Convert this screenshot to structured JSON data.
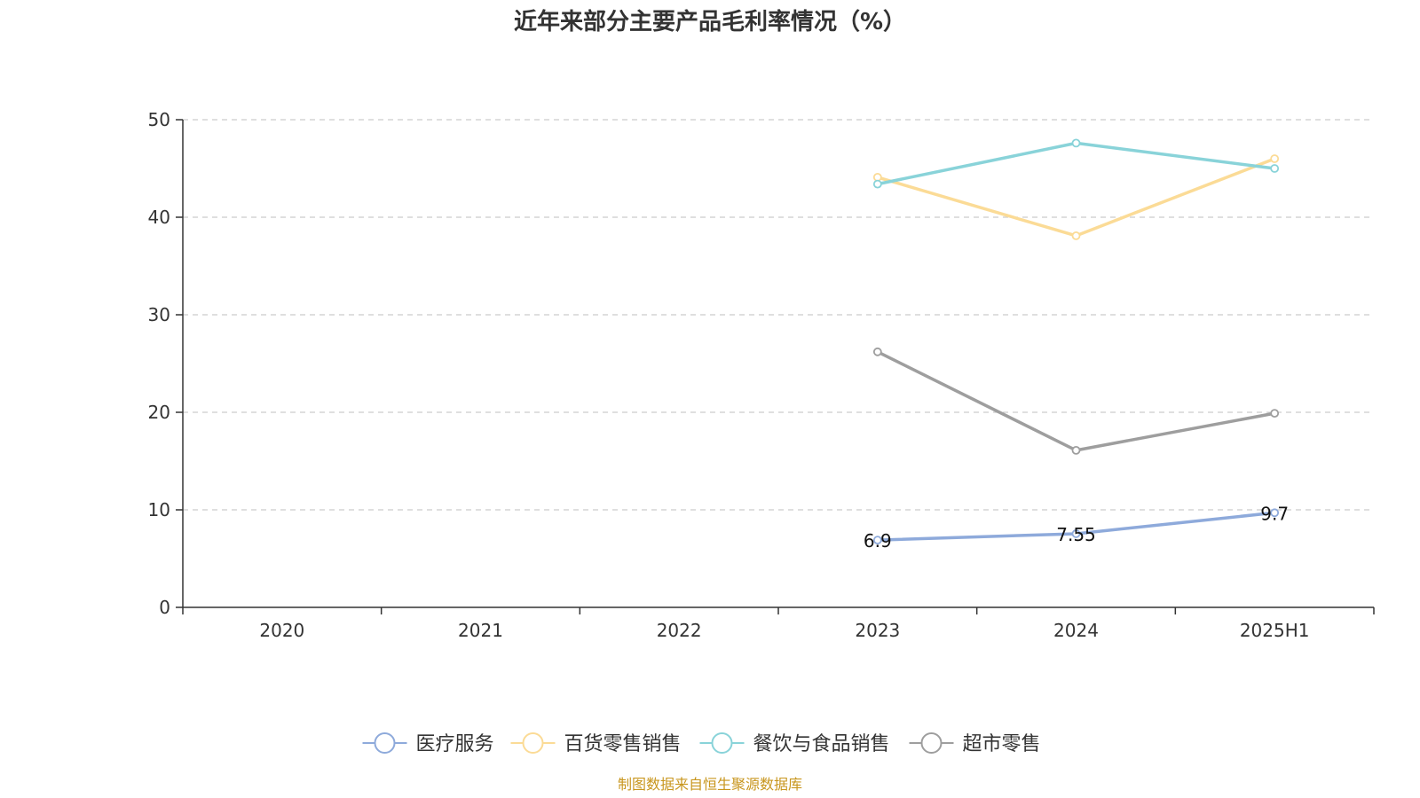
{
  "chart_data": {
    "type": "line",
    "title": "近年来部分主要产品毛利率情况（%）",
    "categories": [
      "2020",
      "2021",
      "2022",
      "2023",
      "2024",
      "2025H1"
    ],
    "ylim": [
      0,
      50
    ],
    "yticks": [
      "0",
      "10",
      "20",
      "30",
      "40",
      "50"
    ],
    "grid": true,
    "legend_position": "bottom",
    "series": [
      {
        "name": "医疗服务",
        "color": "#8eaadb",
        "values": [
          null,
          null,
          null,
          6.9,
          7.55,
          9.7
        ],
        "labels": [
          "",
          "",
          "",
          "6.9",
          "7.55",
          "9.7"
        ]
      },
      {
        "name": "百货零售销售",
        "color": "#fbdb96",
        "values": [
          null,
          null,
          null,
          44.1,
          38.1,
          46.0
        ],
        "labels": [
          "",
          "",
          "",
          "",
          "",
          ""
        ]
      },
      {
        "name": "餐饮与食品销售",
        "color": "#89d3d9",
        "values": [
          null,
          null,
          null,
          43.4,
          47.6,
          45.0
        ],
        "labels": [
          "",
          "",
          "",
          "",
          "",
          ""
        ]
      },
      {
        "name": "超市零售",
        "color": "#9e9e9e",
        "values": [
          null,
          null,
          null,
          26.2,
          16.1,
          19.9
        ],
        "labels": [
          "",
          "",
          "",
          "",
          "",
          ""
        ]
      }
    ]
  },
  "source_text": "制图数据来自恒生聚源数据库",
  "source_color": "#c8961e",
  "axis_color": "#333333",
  "grid_color": "#cccccc"
}
